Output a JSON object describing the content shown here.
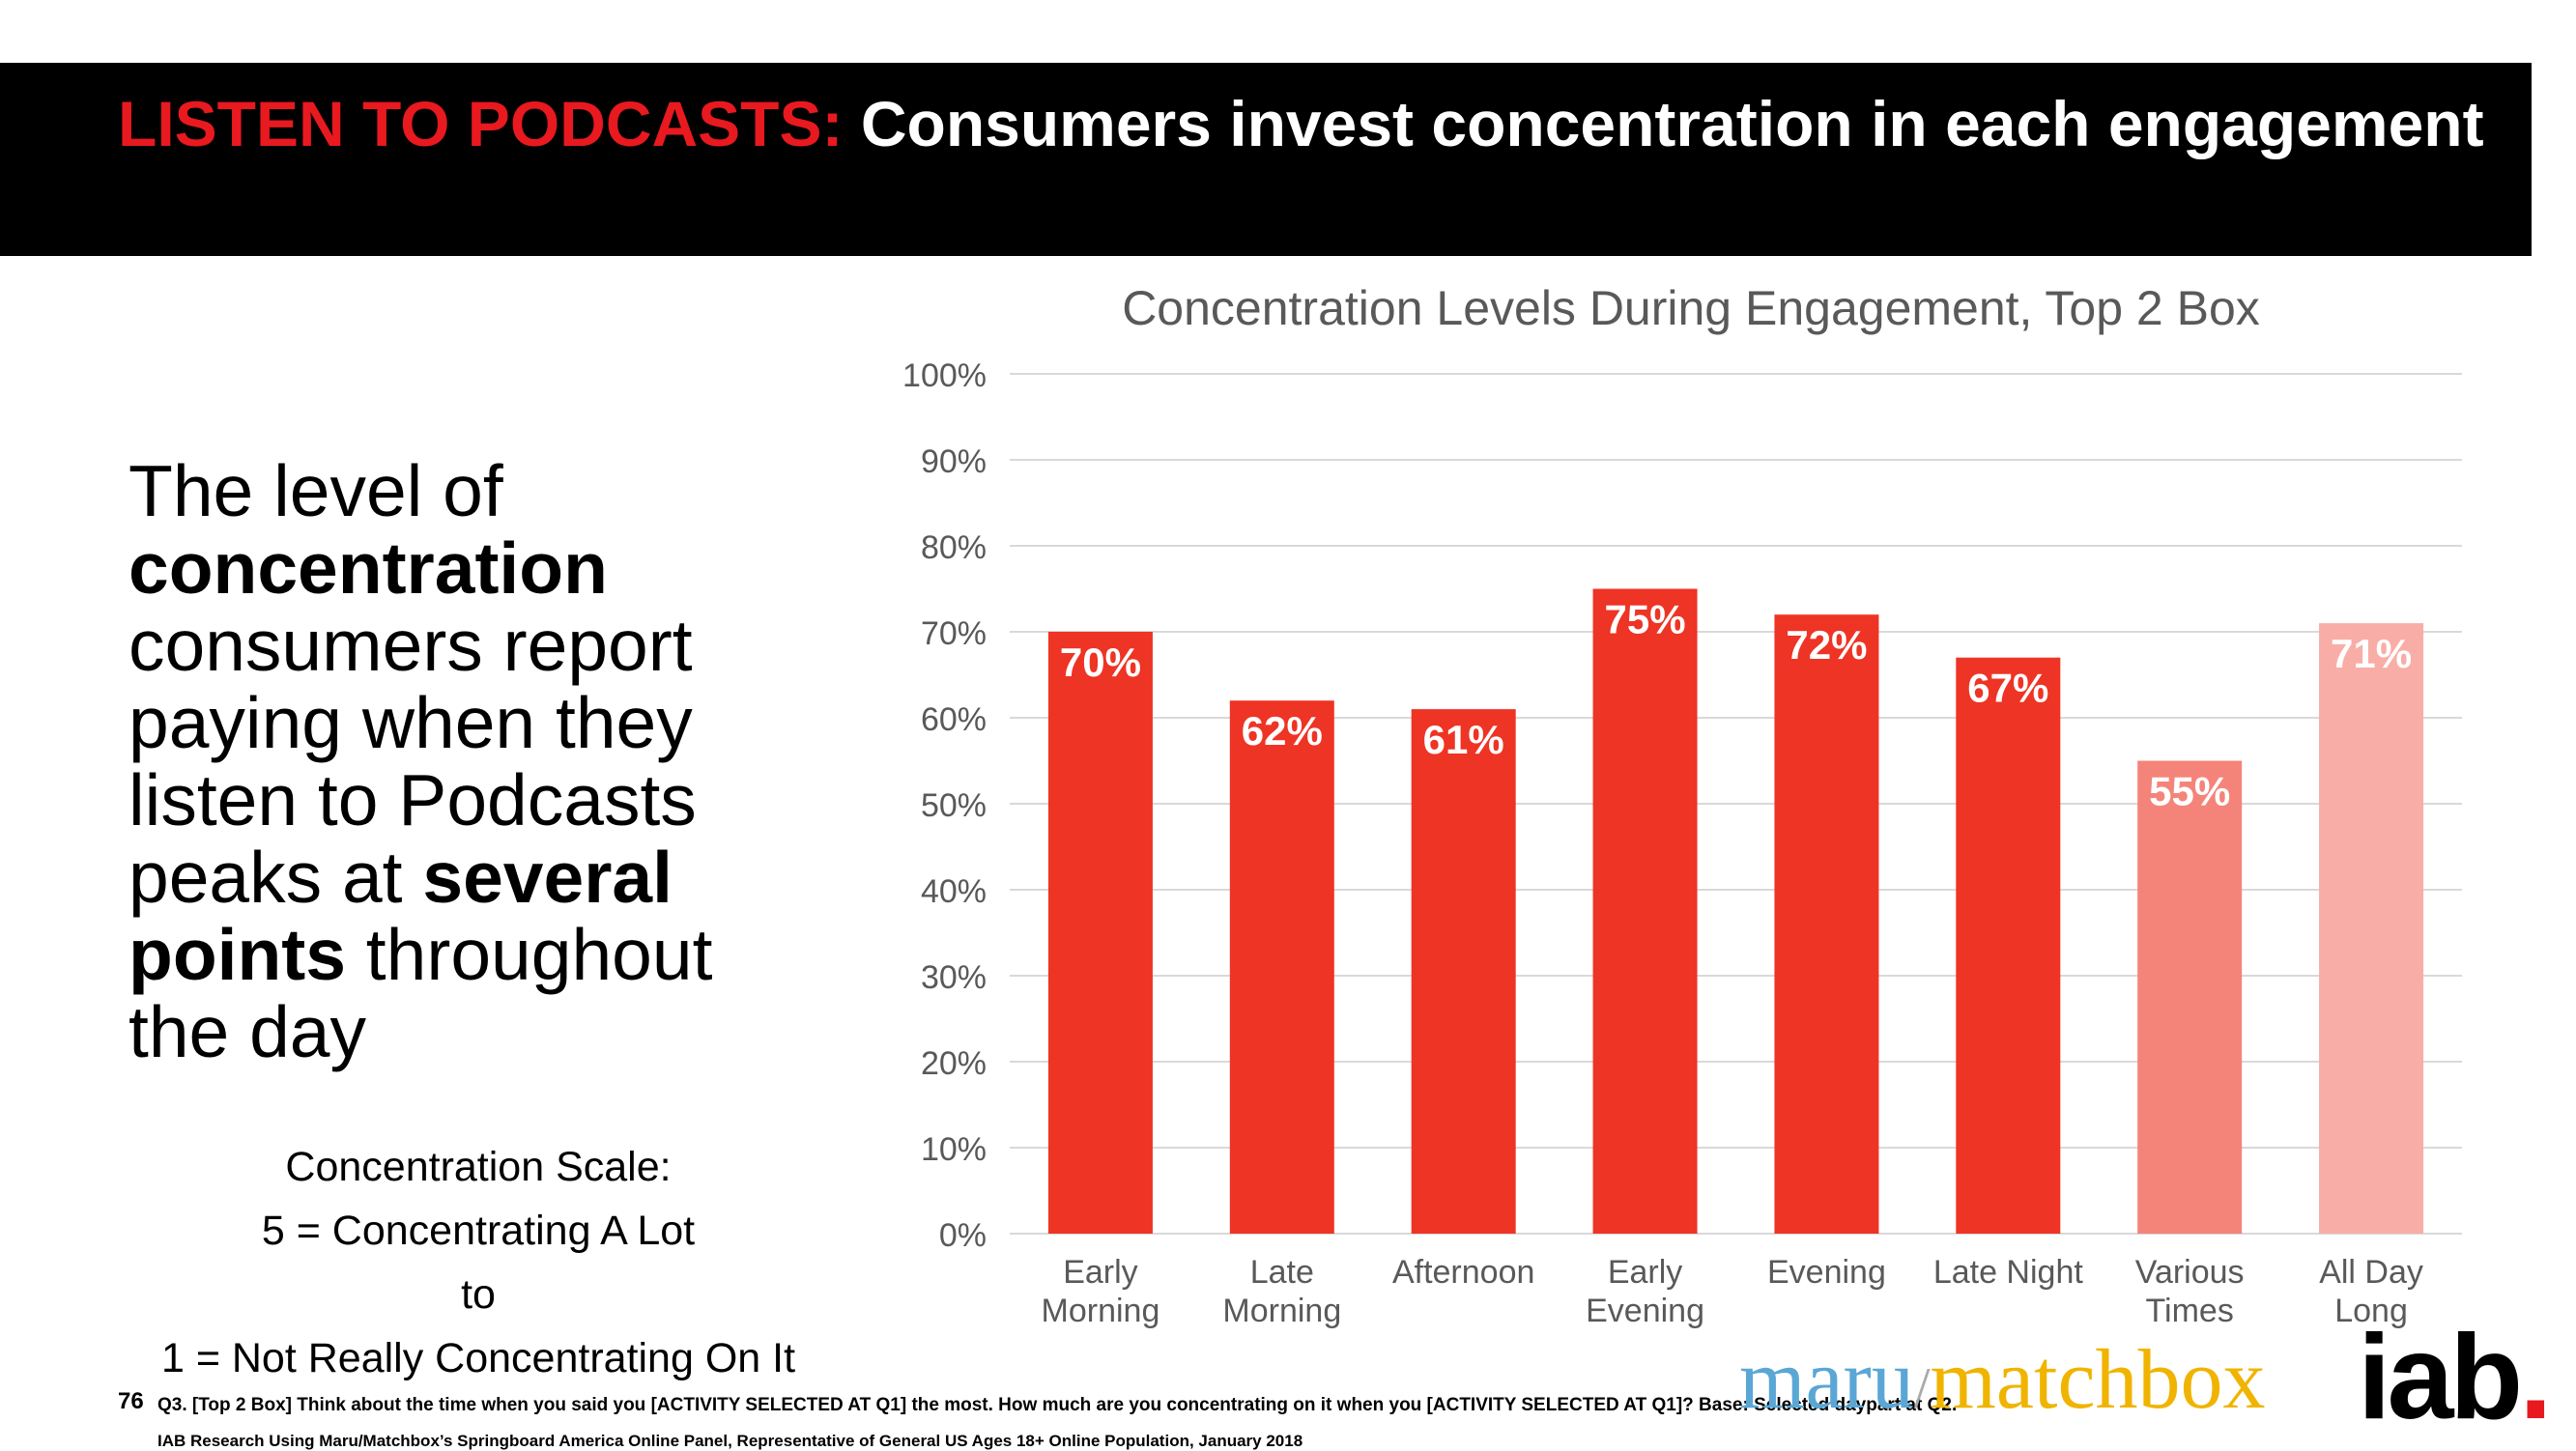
{
  "header": {
    "accent": "LISTEN TO PODCASTS:",
    "title": " Consumers invest concentration in each engagement"
  },
  "body_text": {
    "p1": "The level of ",
    "b1": "concentration",
    "p2": " consumers report paying when they listen to Podcasts peaks at ",
    "b2": "several points",
    "p3": " throughout the day"
  },
  "scale": {
    "line1": "Concentration Scale:",
    "line2": "5 = Concentrating A Lot",
    "line3": "to",
    "line4": "1 = Not Really Concentrating On It"
  },
  "chart_data": {
    "type": "bar",
    "title": "Concentration Levels During Engagement, Top 2 Box",
    "categories": [
      [
        "Early",
        "Morning"
      ],
      [
        "Late",
        "Morning"
      ],
      [
        "Afternoon"
      ],
      [
        "Early",
        "Evening"
      ],
      [
        "Evening"
      ],
      [
        "Late Night"
      ],
      [
        "Various",
        "Times"
      ],
      [
        "All Day",
        "Long"
      ]
    ],
    "values": [
      70,
      62,
      61,
      75,
      72,
      67,
      55,
      71
    ],
    "value_labels": [
      "70%",
      "62%",
      "61%",
      "75%",
      "72%",
      "67%",
      "55%",
      "71%"
    ],
    "bar_colors": [
      "#ee3424",
      "#ee3424",
      "#ee3424",
      "#ee3424",
      "#ee3424",
      "#ee3424",
      "#f4847a",
      "#f8aea6"
    ],
    "ylim": [
      0,
      100
    ],
    "yticks": [
      0,
      10,
      20,
      30,
      40,
      50,
      60,
      70,
      80,
      90,
      100
    ],
    "ytick_labels": [
      "0%",
      "10%",
      "20%",
      "30%",
      "40%",
      "50%",
      "60%",
      "70%",
      "80%",
      "90%",
      "100%"
    ],
    "grid": true,
    "xlabel": "",
    "ylabel": ""
  },
  "footer": {
    "page_number": "76",
    "question": "Q3. [Top 2 Box] Think about the time when you said you [ACTIVITY SELECTED AT Q1] the most.  How much are you concentrating on it when you [ACTIVITY SELECTED AT Q1]? Base: Selected daypart at Q2.",
    "source": "IAB Research Using Maru/Matchbox’s Springboard America Online Panel, Representative of General US Ages 18+ Online Population, January 2018"
  },
  "logos": {
    "maru": "maru",
    "slash": "/",
    "matchbox": "matchbox",
    "iab": "iab",
    "iab_dot": "."
  },
  "colors": {
    "accent_red": "#e8191f",
    "bar_red": "#ee3424",
    "axis_text": "#595959"
  }
}
